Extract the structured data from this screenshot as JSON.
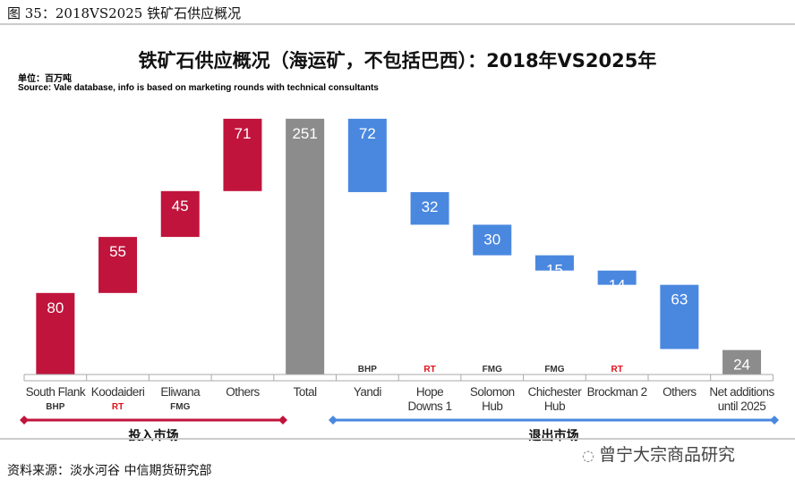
{
  "figure_caption": "图 35：2018VS2025 铁矿石供应概况",
  "footer_source": "资料来源：淡水河谷 中信期货研究部",
  "watermark": "曾宁大宗商品研究",
  "chart_data": {
    "type": "waterfall",
    "title": "铁矿石供应概况（海运矿，不包括巴西）：2018年VS2025年",
    "unit_label": "单位：百万吨",
    "source_note": "Source: Vale database, info is based on marketing rounds with technical consultants",
    "categories": [
      "South Flank",
      "Koodaideri",
      "Eliwana",
      "Others",
      "Total",
      "Yandi",
      "Hope Downs 1",
      "Solomon Hub",
      "Chichester Hub",
      "Brockman 2",
      "Others",
      "Net additions until 2025"
    ],
    "category_lines": [
      [
        "South Flank"
      ],
      [
        "Koodaideri"
      ],
      [
        "Eliwana"
      ],
      [
        "Others"
      ],
      [
        "Total"
      ],
      [
        "Yandi"
      ],
      [
        "Hope",
        "Downs 1"
      ],
      [
        "Solomon",
        "Hub"
      ],
      [
        "Chichester",
        "Hub"
      ],
      [
        "Brockman 2"
      ],
      [
        "Others"
      ],
      [
        "Net additions",
        "until 2025"
      ]
    ],
    "values": [
      80,
      55,
      45,
      71,
      251,
      -72,
      -32,
      -30,
      -15,
      -14,
      -63,
      24
    ],
    "kinds": [
      "add",
      "add",
      "add",
      "add",
      "total",
      "remove",
      "remove",
      "remove",
      "remove",
      "remove",
      "remove",
      "total"
    ],
    "companies": [
      "BHP",
      "RT",
      "FMG",
      "",
      "",
      "BHP",
      "RT",
      "FMG",
      "FMG",
      "RT",
      "",
      ""
    ],
    "groups": [
      {
        "label": "投入市场",
        "from": 0,
        "to": 3,
        "color": "#c0143c"
      },
      {
        "label": "退出市场",
        "from": 5,
        "to": 11,
        "color": "#4a88e0"
      }
    ],
    "colors": {
      "add": "#c0143c",
      "total": "#8c8c8c",
      "remove": "#4a88e0",
      "company_rt": "#e0101a",
      "company_other": "#333333"
    },
    "ylim": [
      0,
      260
    ],
    "grid": false
  }
}
